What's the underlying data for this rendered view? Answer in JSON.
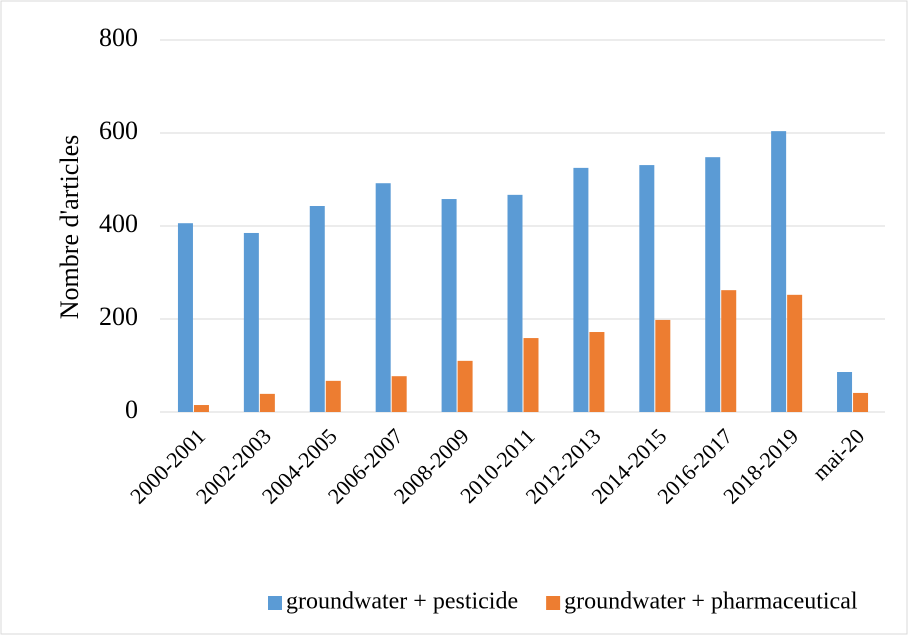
{
  "chart_data": {
    "type": "bar",
    "y_label": "Nombre d'articles",
    "categories": [
      "2000-2001",
      "2002-2003",
      "2004-2005",
      "2006-2007",
      "2008-2009",
      "2010-2011",
      "2012-2013",
      "2014-2015",
      "2016-2017",
      "2018-2019",
      "mai-20"
    ],
    "series": [
      {
        "name": "groundwater + pesticide",
        "color": "#5b9bd5",
        "values": [
          406,
          385,
          443,
          492,
          458,
          467,
          525,
          531,
          548,
          604,
          86
        ]
      },
      {
        "name": "groundwater + pharmaceutical",
        "color": "#ed7d31",
        "values": [
          15,
          39,
          67,
          77,
          110,
          159,
          172,
          198,
          262,
          252,
          41
        ]
      }
    ],
    "ylim": [
      0,
      800
    ],
    "yticks": [
      0,
      200,
      400,
      600,
      800
    ],
    "grid": true,
    "legend": "bottom"
  }
}
